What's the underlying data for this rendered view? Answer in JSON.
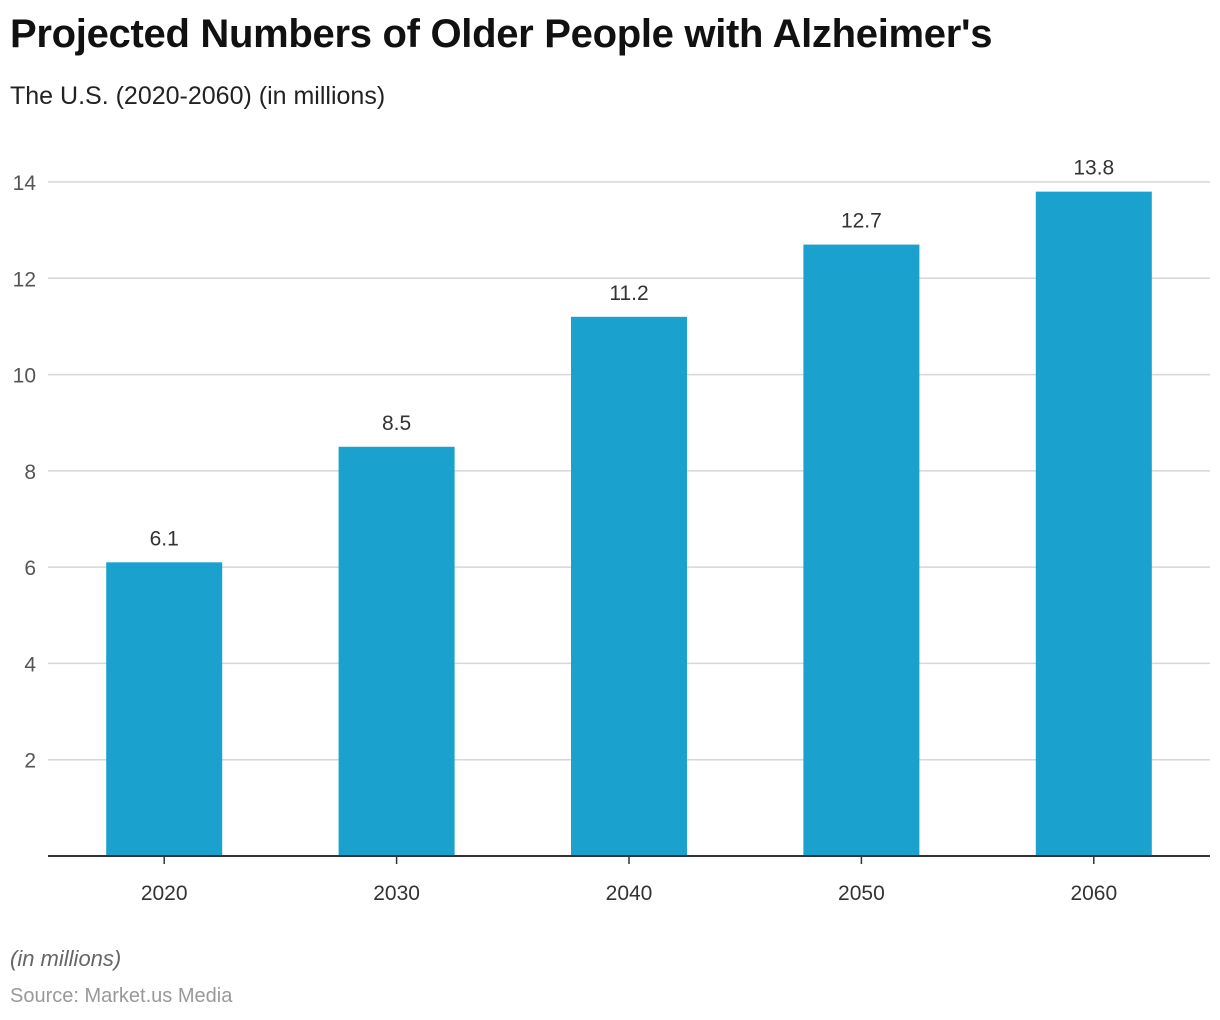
{
  "chart_data": {
    "type": "bar",
    "title": "Projected Numbers of Older People with Alzheimer's",
    "subtitle": "The U.S. (2020-2060) (in millions)",
    "categories": [
      "2020",
      "2030",
      "2040",
      "2050",
      "2060"
    ],
    "values": [
      6.1,
      8.5,
      11.2,
      12.7,
      13.8
    ],
    "value_labels": [
      "6.1",
      "8.5",
      "11.2",
      "12.7",
      "13.8"
    ],
    "yticks": [
      2,
      4,
      6,
      8,
      10,
      12,
      14
    ],
    "ylim": [
      0,
      14
    ],
    "grid": true,
    "xlabel": "",
    "ylabel": "",
    "bar_color": "#1aa1ce",
    "note": "(in millions)",
    "source": "Source: Market.us Media"
  }
}
